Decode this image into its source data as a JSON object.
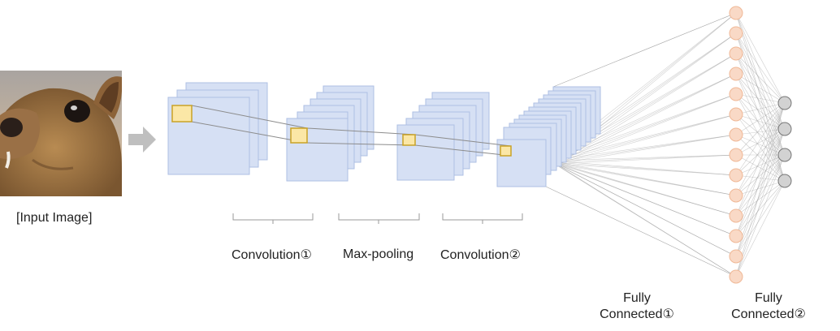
{
  "input": {
    "label": "[Input Image]",
    "image_subject": "rodent-face-photo"
  },
  "stages": {
    "conv1": "Convolution①",
    "pool": "Max-pooling",
    "conv2": "Convolution②",
    "fc1_line1": "Fully",
    "fc1_line2": "Connected①",
    "fc2_line1": "Fully",
    "fc2_line2": "Connected②"
  },
  "network": {
    "fc1_node_count": 14,
    "fc2_node_count": 4
  },
  "colors": {
    "feature_map_fill": "#d6e0f4",
    "feature_map_stroke": "#aebfe3",
    "kernel_fill": "#fbe7a6",
    "kernel_stroke": "#c9a227",
    "fc1_node_fill": "#f9d9c6",
    "fc1_node_stroke": "#f0b896",
    "fc2_node_fill": "#d2d2d2",
    "fc2_node_stroke": "#777777",
    "arrow": "#bfbfbf",
    "connection": "#9a9a9a"
  }
}
